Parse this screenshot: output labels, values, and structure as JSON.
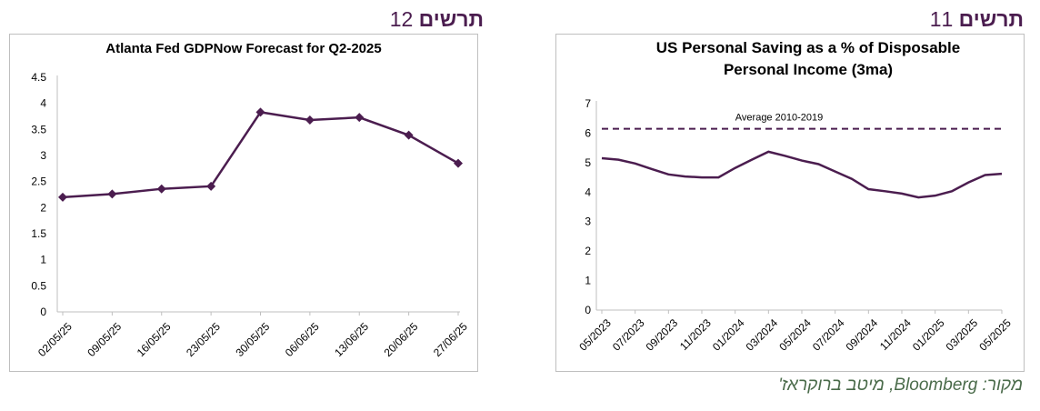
{
  "captions": {
    "left": {
      "word": "תרשים",
      "num": "12"
    },
    "right": {
      "word": "תרשים",
      "num": "11"
    }
  },
  "source_note": "מקור: Bloomberg, מיטב ברוקראז'",
  "colors": {
    "series": "#4b1d4f",
    "caption": "#4b1d4f",
    "source": "#4a6b4a",
    "frame": "#bfbfbf"
  },
  "chart_data": [
    {
      "type": "line",
      "title": "Atlanta Fed GDPNow  Forecast for Q2-2025",
      "categories": [
        "02/05/25",
        "09/05/25",
        "16/05/25",
        "23/05/25",
        "30/05/25",
        "06/06/25",
        "13/06/25",
        "20/06/25",
        "27/06/25"
      ],
      "values": [
        2.2,
        2.26,
        2.36,
        2.41,
        3.83,
        3.68,
        3.73,
        3.39,
        2.85
      ],
      "ylim": [
        0,
        4.5
      ],
      "yticks": [
        "0",
        "0.5",
        "1",
        "1.5",
        "2",
        "2.5",
        "3",
        "3.5",
        "4",
        "4.5"
      ],
      "markers": "diamond",
      "grid": false
    },
    {
      "type": "line",
      "title_lines": [
        "US Personal Saving as a % of Disposable",
        "Personal Income (3ma)"
      ],
      "x_ticks": [
        "05/2023",
        "07/2023",
        "09/2023",
        "11/2023",
        "01/2024",
        "03/2024",
        "05/2024",
        "07/2024",
        "09/2024",
        "11/2024",
        "01/2025",
        "03/2025",
        "05/2025"
      ],
      "values": [
        5.15,
        5.1,
        4.97,
        4.78,
        4.6,
        4.53,
        4.5,
        4.5,
        4.82,
        5.1,
        5.37,
        5.23,
        5.07,
        4.95,
        4.7,
        4.45,
        4.1,
        4.03,
        3.95,
        3.82,
        3.88,
        4.03,
        4.33,
        4.58,
        4.62
      ],
      "ylim": [
        0,
        7
      ],
      "yticks": [
        "0",
        "1",
        "2",
        "3",
        "4",
        "5",
        "6",
        "7"
      ],
      "reference_line": {
        "value": 6.15,
        "label": "Average 2010-2019",
        "style": "dashed"
      },
      "grid": false
    }
  ]
}
